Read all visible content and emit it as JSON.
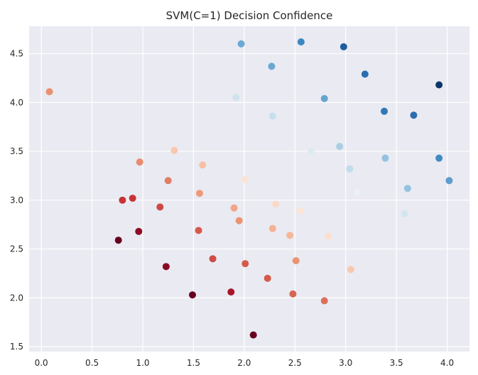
{
  "chart_data": {
    "type": "scatter",
    "title": "SVM(C=1) Decision Confidence",
    "xlabel": "",
    "ylabel": "",
    "xlim": [
      -0.12,
      4.22
    ],
    "ylim": [
      1.45,
      4.78
    ],
    "xticks": [
      "0.0",
      "0.5",
      "1.0",
      "1.5",
      "2.0",
      "2.5",
      "3.0",
      "3.5",
      "4.0"
    ],
    "yticks": [
      "1.5",
      "2.0",
      "2.5",
      "3.0",
      "3.5",
      "4.0",
      "4.5"
    ],
    "grid": true,
    "background": "#eaeaf2",
    "colormap": "RdBu",
    "points": [
      {
        "x": 0.08,
        "y": 4.11,
        "color": "#ea9070"
      },
      {
        "x": 1.97,
        "y": 4.6,
        "color": "#6aaad3"
      },
      {
        "x": 2.56,
        "y": 4.62,
        "color": "#3a87c0"
      },
      {
        "x": 2.98,
        "y": 4.57,
        "color": "#1a5d9f"
      },
      {
        "x": 2.27,
        "y": 4.37,
        "color": "#6ba8d1"
      },
      {
        "x": 3.19,
        "y": 4.29,
        "color": "#2a6eb0"
      },
      {
        "x": 3.92,
        "y": 4.18,
        "color": "#0d3668"
      },
      {
        "x": 1.92,
        "y": 4.05,
        "color": "#cfe3ee"
      },
      {
        "x": 2.79,
        "y": 4.04,
        "color": "#66a5cf"
      },
      {
        "x": 2.28,
        "y": 3.86,
        "color": "#c7dfed"
      },
      {
        "x": 3.38,
        "y": 3.91,
        "color": "#3278b6"
      },
      {
        "x": 3.67,
        "y": 3.87,
        "color": "#2a6eb0"
      },
      {
        "x": 1.31,
        "y": 3.51,
        "color": "#f8c8ae"
      },
      {
        "x": 2.66,
        "y": 3.5,
        "color": "#dcebf2"
      },
      {
        "x": 2.94,
        "y": 3.55,
        "color": "#a9cfe4"
      },
      {
        "x": 0.97,
        "y": 3.39,
        "color": "#e98b6e"
      },
      {
        "x": 1.59,
        "y": 3.36,
        "color": "#f7c1a4"
      },
      {
        "x": 3.04,
        "y": 3.32,
        "color": "#c1dcec"
      },
      {
        "x": 3.39,
        "y": 3.43,
        "color": "#93c3df"
      },
      {
        "x": 3.92,
        "y": 3.43,
        "color": "#3f8cc2"
      },
      {
        "x": 1.25,
        "y": 3.2,
        "color": "#df7e66"
      },
      {
        "x": 2.01,
        "y": 3.21,
        "color": "#fbe3d6"
      },
      {
        "x": 3.11,
        "y": 3.08,
        "color": "#eaf1f4"
      },
      {
        "x": 3.61,
        "y": 3.12,
        "color": "#93c3df"
      },
      {
        "x": 4.02,
        "y": 3.2,
        "color": "#5d9ecb"
      },
      {
        "x": 0.8,
        "y": 3.0,
        "color": "#c63436"
      },
      {
        "x": 0.9,
        "y": 3.02,
        "color": "#c63436"
      },
      {
        "x": 1.17,
        "y": 2.93,
        "color": "#cc4a43"
      },
      {
        "x": 1.56,
        "y": 3.07,
        "color": "#ee9a79"
      },
      {
        "x": 1.9,
        "y": 2.92,
        "color": "#f1a586"
      },
      {
        "x": 2.31,
        "y": 2.96,
        "color": "#fad9c6"
      },
      {
        "x": 2.55,
        "y": 2.89,
        "color": "#fbe5d7"
      },
      {
        "x": 3.58,
        "y": 2.86,
        "color": "#d2e6f0"
      },
      {
        "x": 0.76,
        "y": 2.59,
        "color": "#67001f"
      },
      {
        "x": 0.96,
        "y": 2.68,
        "color": "#8e0c25"
      },
      {
        "x": 1.55,
        "y": 2.69,
        "color": "#d55a4b"
      },
      {
        "x": 1.95,
        "y": 2.79,
        "color": "#ec9373"
      },
      {
        "x": 2.28,
        "y": 2.71,
        "color": "#f5b193"
      },
      {
        "x": 2.45,
        "y": 2.64,
        "color": "#f6b799"
      },
      {
        "x": 2.83,
        "y": 2.63,
        "color": "#fbdfcd"
      },
      {
        "x": 1.23,
        "y": 2.32,
        "color": "#8a0b24"
      },
      {
        "x": 1.69,
        "y": 2.4,
        "color": "#cd4c44"
      },
      {
        "x": 2.01,
        "y": 2.35,
        "color": "#d55a4b"
      },
      {
        "x": 2.51,
        "y": 2.38,
        "color": "#eb9473"
      },
      {
        "x": 3.05,
        "y": 2.29,
        "color": "#f8c8ae"
      },
      {
        "x": 1.49,
        "y": 2.03,
        "color": "#67001f"
      },
      {
        "x": 1.87,
        "y": 2.06,
        "color": "#a81529"
      },
      {
        "x": 2.23,
        "y": 2.2,
        "color": "#d55a4b"
      },
      {
        "x": 2.48,
        "y": 2.04,
        "color": "#d86452"
      },
      {
        "x": 2.79,
        "y": 1.97,
        "color": "#dc6f5a"
      },
      {
        "x": 2.09,
        "y": 1.62,
        "color": "#67001f"
      }
    ]
  }
}
